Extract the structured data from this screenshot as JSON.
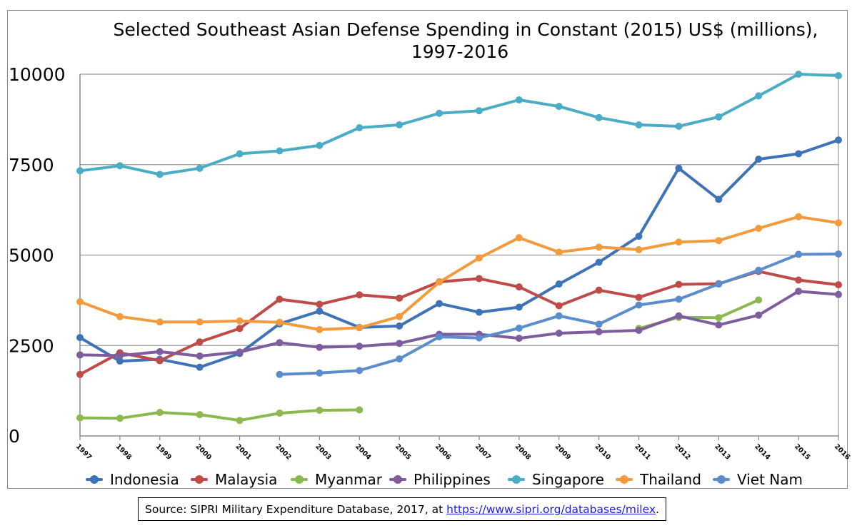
{
  "chart_data": {
    "type": "line",
    "title_line1": "Selected Southeast Asian Defense Spending in Constant (2015) US$ (millions),",
    "title_line2": "1997-2016",
    "xlabel": "",
    "ylabel": "",
    "x": [
      "1997",
      "1998",
      "1999",
      "2000",
      "2001",
      "2002",
      "2003",
      "2004",
      "2005",
      "2006",
      "2007",
      "2008",
      "2009",
      "2010",
      "2011",
      "2012",
      "2013",
      "2014",
      "2015",
      "2016"
    ],
    "ylim": [
      0,
      10000
    ],
    "yticks": [
      "0",
      "2500",
      "5000",
      "7500",
      "10000"
    ],
    "grid": "horizontal",
    "legend": "bottom",
    "series": [
      {
        "name": "Indonesia",
        "color": "#3f73b8",
        "values": [
          2720,
          2070,
          2120,
          1900,
          2280,
          3100,
          3450,
          3000,
          3040,
          3660,
          3420,
          3560,
          4200,
          4800,
          5520,
          7400,
          6540,
          7650,
          7800,
          8180
        ]
      },
      {
        "name": "Malaysia",
        "color": "#be4b48",
        "values": [
          1700,
          2300,
          2080,
          2600,
          2970,
          3780,
          3640,
          3900,
          3810,
          4260,
          4350,
          4120,
          3600,
          4030,
          3830,
          4190,
          4210,
          4550,
          4310,
          4180
        ]
      },
      {
        "name": "Myanmar",
        "color": "#8cb850",
        "values": [
          500,
          490,
          650,
          590,
          430,
          630,
          710,
          720,
          null,
          null,
          null,
          null,
          null,
          null,
          2970,
          3280,
          3270,
          3760,
          null,
          null
        ]
      },
      {
        "name": "Philippines",
        "color": "#7e5d9e",
        "values": [
          2240,
          2220,
          2330,
          2210,
          2320,
          2580,
          2450,
          2480,
          2560,
          2810,
          2810,
          2700,
          2840,
          2880,
          2920,
          3320,
          3070,
          3340,
          4000,
          3910
        ]
      },
      {
        "name": "Singapore",
        "color": "#4aacc5",
        "values": [
          7330,
          7470,
          7230,
          7400,
          7800,
          7880,
          8030,
          8520,
          8600,
          8920,
          8990,
          9290,
          9110,
          8800,
          8600,
          8560,
          8820,
          9400,
          10000,
          9960
        ]
      },
      {
        "name": "Thailand",
        "color": "#f39b3c",
        "values": [
          3710,
          3300,
          3150,
          3150,
          3180,
          3140,
          2940,
          2990,
          3300,
          4250,
          4920,
          5480,
          5080,
          5220,
          5150,
          5360,
          5400,
          5740,
          6060,
          5890
        ]
      },
      {
        "name": "Viet Nam",
        "color": "#5b8dcc",
        "values": [
          null,
          null,
          null,
          null,
          null,
          1700,
          1740,
          1810,
          2130,
          2740,
          2710,
          2980,
          3320,
          3090,
          3620,
          3780,
          4200,
          4580,
          5020,
          5030
        ]
      }
    ]
  },
  "source": {
    "prefix": "Source: SIPRI Military Expenditure Database, 2017, at ",
    "link": "https://www.sipri.org/databases/milex",
    "suffix": "."
  }
}
